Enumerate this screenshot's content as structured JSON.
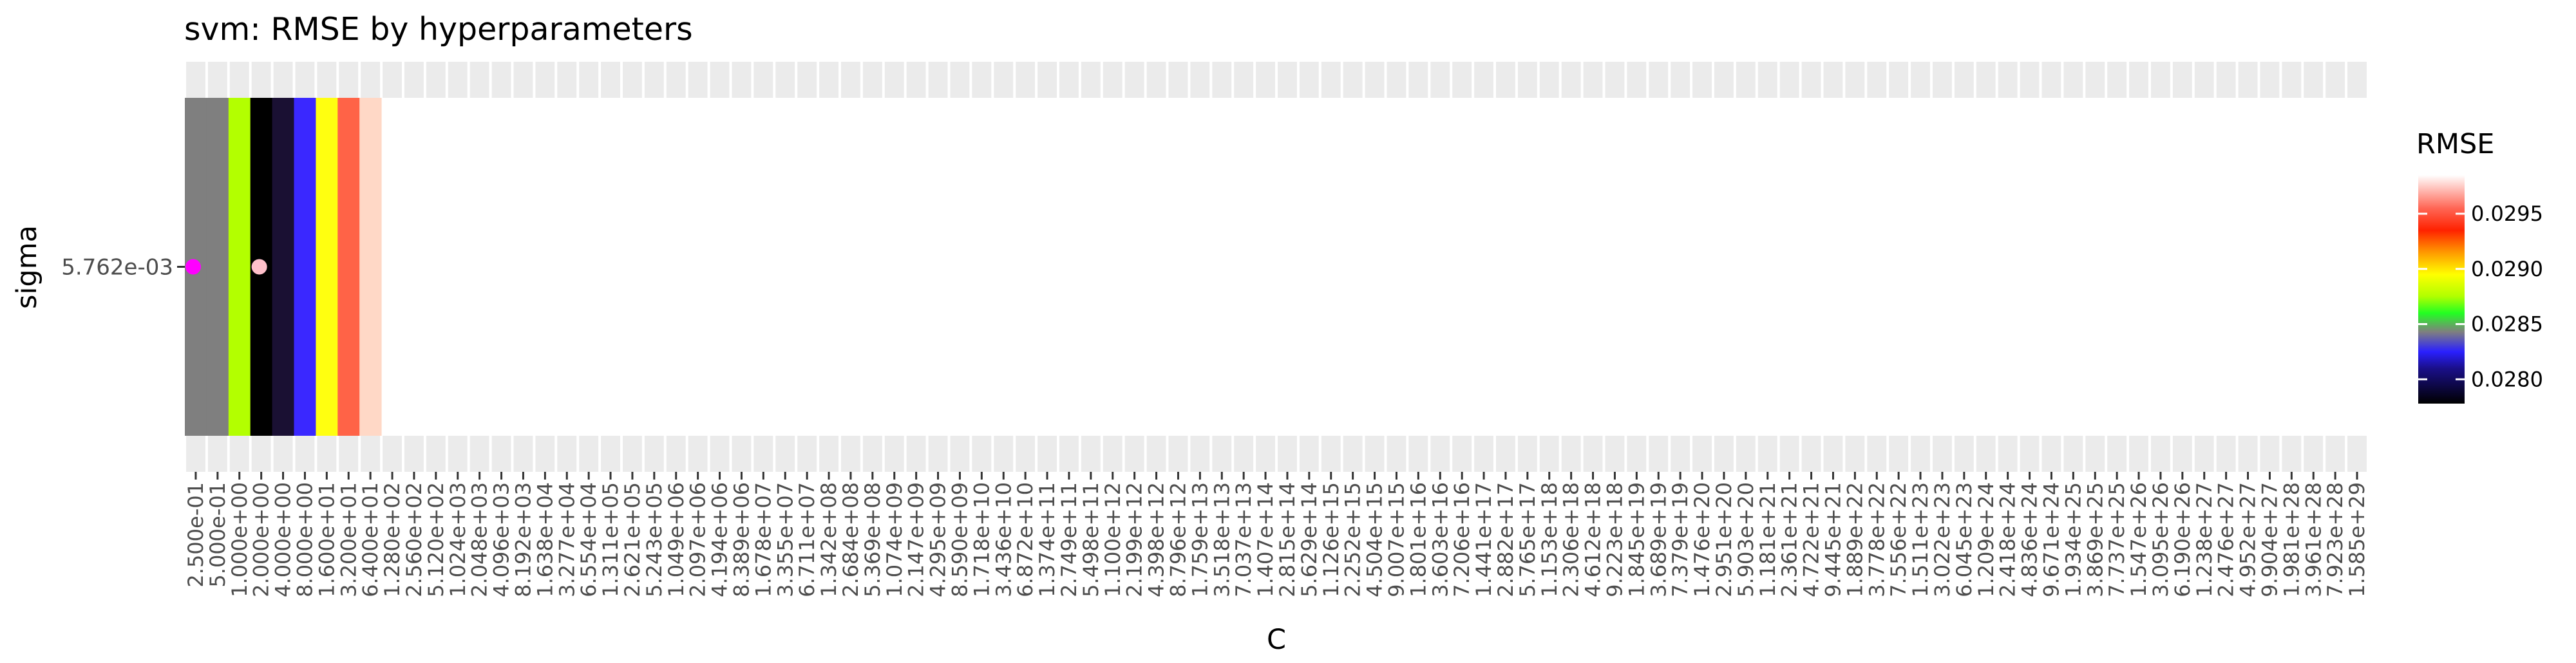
{
  "chart_data": {
    "type": "heatmap",
    "title": "svm: RMSE by hyperparameters",
    "xlabel": "C",
    "ylabel": "sigma",
    "x_categories": [
      "2.500e-01",
      "5.000e-01",
      "1.000e+00",
      "2.000e+00",
      "4.000e+00",
      "8.000e+00",
      "1.600e+01",
      "3.200e+01",
      "6.400e+01",
      "1.280e+02",
      "2.560e+02",
      "5.120e+02",
      "1.024e+03",
      "2.048e+03",
      "4.096e+03",
      "8.192e+03",
      "1.638e+04",
      "3.277e+04",
      "6.554e+04",
      "1.311e+05",
      "2.621e+05",
      "5.243e+05",
      "1.049e+06",
      "2.097e+06",
      "4.194e+06",
      "8.389e+06",
      "1.678e+07",
      "3.355e+07",
      "6.711e+07",
      "1.342e+08",
      "2.684e+08",
      "5.369e+08",
      "1.074e+09",
      "2.147e+09",
      "4.295e+09",
      "8.590e+09",
      "1.718e+10",
      "3.436e+10",
      "6.872e+10",
      "1.374e+11",
      "2.749e+11",
      "5.498e+11",
      "1.100e+12",
      "2.199e+12",
      "4.398e+12",
      "8.796e+12",
      "1.759e+13",
      "3.518e+13",
      "7.037e+13",
      "1.407e+14",
      "2.815e+14",
      "5.629e+14",
      "1.126e+15",
      "2.252e+15",
      "4.504e+15",
      "9.007e+15",
      "1.801e+16",
      "3.603e+16",
      "7.206e+16",
      "1.441e+17",
      "2.882e+17",
      "5.765e+17",
      "1.153e+18",
      "2.306e+18",
      "4.612e+18",
      "9.223e+18",
      "1.845e+19",
      "3.689e+19",
      "7.379e+19",
      "1.476e+20",
      "2.951e+20",
      "5.903e+20",
      "1.181e+21",
      "2.361e+21",
      "4.722e+21",
      "9.445e+21",
      "1.889e+22",
      "3.778e+22",
      "7.556e+22",
      "1.511e+23",
      "3.022e+23",
      "6.045e+23",
      "1.209e+24",
      "2.418e+24",
      "4.836e+24",
      "9.671e+24",
      "1.934e+25",
      "3.869e+25",
      "7.737e+25",
      "1.547e+26",
      "3.095e+26",
      "6.190e+26",
      "1.238e+27",
      "2.476e+27",
      "4.952e+27",
      "9.904e+27",
      "1.981e+28",
      "3.961e+28",
      "7.923e+28",
      "1.585e+29"
    ],
    "y_categories": [
      "5.762e-03"
    ],
    "cells": [
      {
        "x": "2.500e-01",
        "y": "5.762e-03",
        "value": 0.02843,
        "color": "#7f7f7f"
      },
      {
        "x": "5.000e-01",
        "y": "5.762e-03",
        "value": 0.02843,
        "color": "#7f7f7f"
      },
      {
        "x": "1.000e+00",
        "y": "5.762e-03",
        "value": 0.02875,
        "color": "#b3ff00"
      },
      {
        "x": "2.000e+00",
        "y": "5.762e-03",
        "value": 0.02778,
        "color": "#000000"
      },
      {
        "x": "4.000e+00",
        "y": "5.762e-03",
        "value": 0.0279,
        "color": "#1a1033"
      },
      {
        "x": "8.000e+00",
        "y": "5.762e-03",
        "value": 0.02825,
        "color": "#3a28ff"
      },
      {
        "x": "1.600e+01",
        "y": "5.762e-03",
        "value": 0.0289,
        "color": "#ffff10"
      },
      {
        "x": "3.200e+01",
        "y": "5.762e-03",
        "value": 0.02955,
        "color": "#ff6347"
      },
      {
        "x": "6.400e+01",
        "y": "5.762e-03",
        "value": 0.02982,
        "color": "#ffd8c6"
      }
    ],
    "points": [
      {
        "x": "2.500e-01",
        "y": "5.762e-03",
        "color": "#ff00ff"
      },
      {
        "x": "2.000e+00",
        "y": "5.762e-03",
        "color": "#ffc0cb"
      }
    ],
    "legend": {
      "title": "RMSE",
      "placement": "right",
      "min": 0.02778,
      "max": 0.02985,
      "ticks": [
        "0.0280",
        "0.0285",
        "0.0290",
        "0.0295"
      ],
      "tick_values": [
        0.028,
        0.0285,
        0.029,
        0.0295
      ],
      "gradient": [
        {
          "value": 0.02778,
          "color": "#000000"
        },
        {
          "value": 0.0281,
          "color": "#1a0f8a"
        },
        {
          "value": 0.02825,
          "color": "#2a20ff"
        },
        {
          "value": 0.02843,
          "color": "#7f7f7f"
        },
        {
          "value": 0.0286,
          "color": "#22ff22"
        },
        {
          "value": 0.02875,
          "color": "#b0ff00"
        },
        {
          "value": 0.02895,
          "color": "#ffff00"
        },
        {
          "value": 0.02915,
          "color": "#ff9900"
        },
        {
          "value": 0.02935,
          "color": "#ff2200"
        },
        {
          "value": 0.02955,
          "color": "#ff6655"
        },
        {
          "value": 0.02985,
          "color": "#ffffff"
        }
      ]
    },
    "strip_color": "#ebebeb",
    "grid": false
  }
}
